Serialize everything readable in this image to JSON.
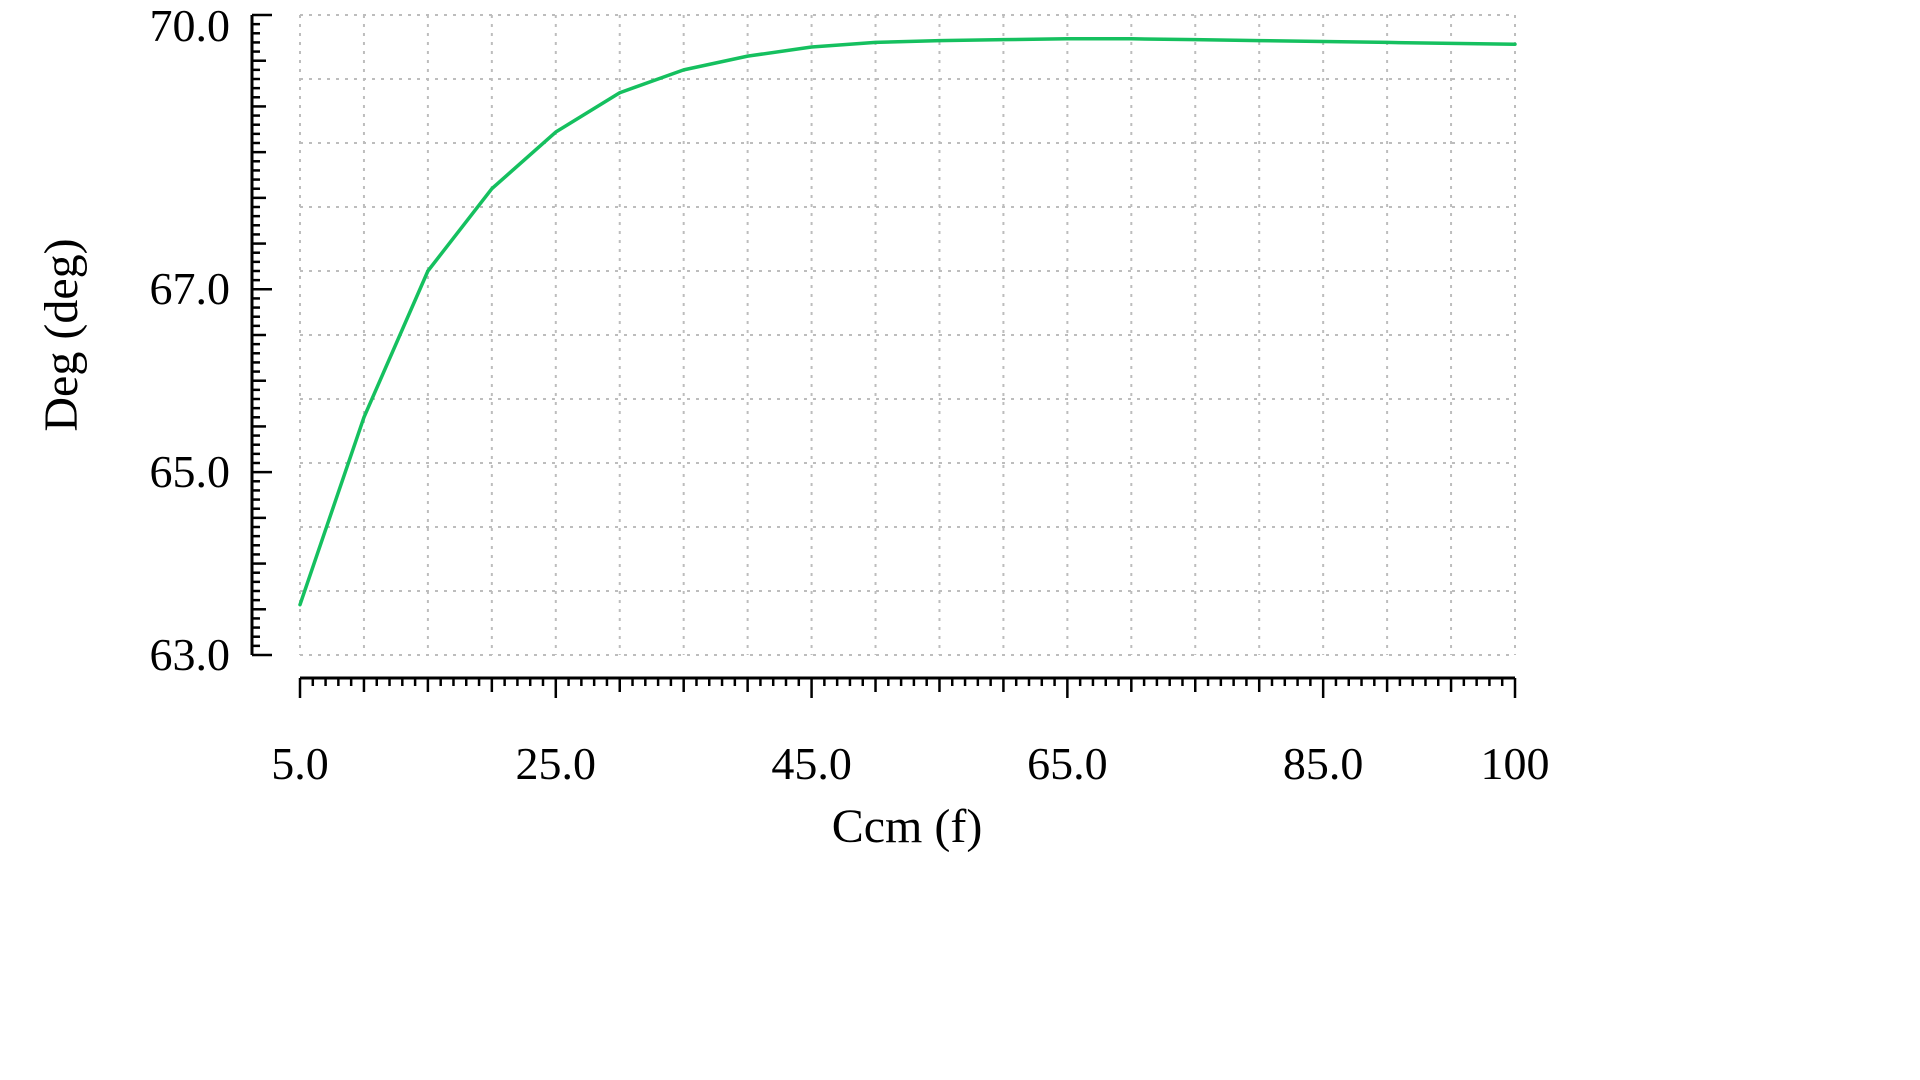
{
  "chart_data": {
    "type": "line",
    "title": "",
    "xlabel": "Ccm (f)",
    "ylabel": "Deg (deg)",
    "xlim": [
      5,
      100
    ],
    "ylim": [
      63,
      70
    ],
    "x_ticks": [
      5,
      25,
      45,
      65,
      85,
      100
    ],
    "x_tick_labels": [
      "5.0",
      "25.0",
      "45.0",
      "65.0",
      "85.0",
      "100"
    ],
    "y_ticks": [
      63,
      65,
      67,
      70
    ],
    "y_tick_labels": [
      "63.0",
      "65.0",
      "67.0",
      "70.0"
    ],
    "grid": true,
    "grid_style": "dashed",
    "x_grid_step": 5,
    "y_grid_divisions": 10,
    "x_minor_tick_step": 1,
    "x_major_tick_step": 5,
    "y_minor_tick_step": 0.1,
    "y_major_tick_step": 0.5,
    "legend": "none",
    "colors": {
      "line": "#15c05f",
      "grid": "#bdbdbd",
      "axis": "#000000",
      "background": "#ffffff"
    },
    "series": [
      {
        "name": "Deg",
        "x": [
          5,
          10,
          15,
          20,
          25,
          30,
          35,
          40,
          45,
          50,
          55,
          60,
          65,
          70,
          75,
          80,
          85,
          90,
          95,
          100
        ],
        "y": [
          63.55,
          65.6,
          67.2,
          68.1,
          68.72,
          69.15,
          69.4,
          69.55,
          69.65,
          69.7,
          69.72,
          69.73,
          69.74,
          69.74,
          69.73,
          69.72,
          69.71,
          69.7,
          69.69,
          69.68
        ]
      }
    ]
  }
}
